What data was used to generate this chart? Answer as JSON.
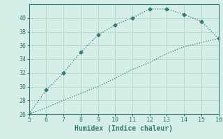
{
  "x_upper": [
    5,
    6,
    7,
    8,
    9,
    10,
    11,
    12,
    13,
    14,
    15,
    16
  ],
  "y_upper": [
    26,
    29.5,
    32,
    35,
    37.5,
    39,
    40,
    41.3,
    41.3,
    40.5,
    39.5,
    37
  ],
  "x_lower": [
    5,
    6,
    7,
    8,
    9,
    10,
    11,
    12,
    13,
    14,
    15,
    16
  ],
  "y_lower": [
    26,
    26.9,
    28.0,
    29.0,
    30.0,
    31.2,
    32.5,
    33.5,
    34.8,
    35.8,
    36.4,
    37
  ],
  "line_color": "#2e7d6e",
  "bg_color": "#d6eee8",
  "grid_color": "#b8d8d0",
  "xlabel": "Humidex (Indice chaleur)",
  "xlim": [
    5,
    16
  ],
  "ylim": [
    26,
    42
  ],
  "xticks": [
    5,
    6,
    7,
    8,
    9,
    10,
    11,
    12,
    13,
    14,
    15,
    16
  ],
  "yticks": [
    26,
    28,
    30,
    32,
    34,
    36,
    38,
    40
  ],
  "marker": "D",
  "marker_size": 2.5,
  "linewidth": 0.9
}
